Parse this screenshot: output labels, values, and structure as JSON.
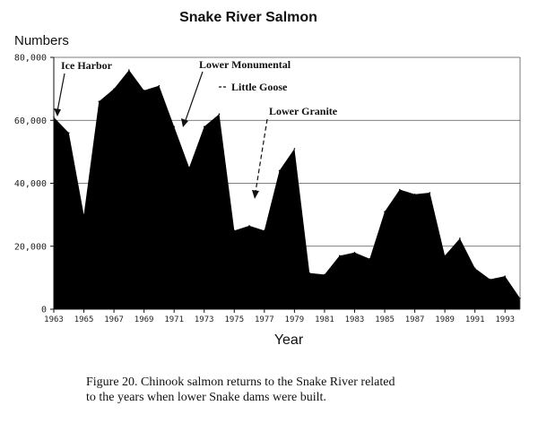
{
  "chart_data": {
    "type": "area",
    "title": "Snake River Salmon",
    "ylabel": "Numbers",
    "xlabel": "Year",
    "ylim": [
      0,
      80000
    ],
    "xlim": [
      1963,
      1994
    ],
    "y_ticks": [
      0,
      20000,
      40000,
      60000,
      80000
    ],
    "y_tick_labels": [
      "0",
      "20,000",
      "40,000",
      "60,000",
      "80,000"
    ],
    "x_ticks": [
      1963,
      1965,
      1967,
      1969,
      1971,
      1973,
      1975,
      1977,
      1979,
      1981,
      1983,
      1985,
      1987,
      1989,
      1991,
      1993
    ],
    "x_tick_labels": [
      "1963",
      "1965",
      "1967",
      "1969",
      "1971",
      "1973",
      "1975",
      "1977",
      "1979",
      "1981",
      "1983",
      "1985",
      "1987",
      "1989",
      "1991",
      "1993"
    ],
    "grid": "horizontal",
    "series": [
      {
        "name": "",
        "color": "#000000",
        "x": [
          1963,
          1964,
          1965,
          1966,
          1967,
          1968,
          1969,
          1970,
          1971,
          1972,
          1973,
          1974,
          1975,
          1976,
          1977,
          1978,
          1979,
          1980,
          1981,
          1982,
          1983,
          1984,
          1985,
          1986,
          1987,
          1988,
          1989,
          1990,
          1991,
          1992,
          1993,
          1994
        ],
        "values": [
          61000,
          56000,
          30000,
          66000,
          70000,
          76000,
          69500,
          71000,
          58000,
          45000,
          58000,
          62000,
          25000,
          26500,
          25000,
          44000,
          51000,
          11500,
          11000,
          17000,
          18000,
          16000,
          31000,
          38000,
          36500,
          37000,
          17000,
          22500,
          13000,
          9500,
          10500,
          3500
        ]
      }
    ],
    "annotations": [
      {
        "text": "Ice Harbor",
        "year": 1963
      },
      {
        "text": "Lower Monumental",
        "year": 1970
      },
      {
        "text": "Little Goose",
        "year": 1970
      },
      {
        "text": "Lower Granite",
        "year": 1975
      }
    ]
  },
  "caption": {
    "line1": "Figure 20.  Chinook salmon returns to the Snake River related",
    "line2": "to the years when lower Snake dams were built."
  }
}
